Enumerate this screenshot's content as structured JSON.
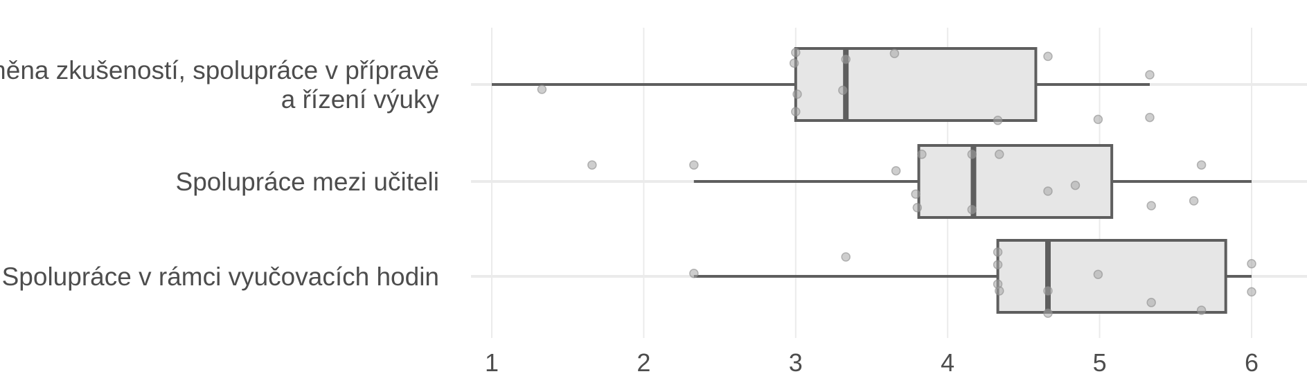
{
  "chart_data": {
    "type": "boxplot",
    "orientation": "horizontal",
    "title": "",
    "xlabel": "",
    "ylabel": "",
    "xlim": [
      0.8,
      6.25
    ],
    "x_ticks": [
      1,
      2,
      3,
      4,
      5,
      6
    ],
    "x_tick_labels": [
      "1",
      "2",
      "3",
      "4",
      "5",
      "6"
    ],
    "grid": true,
    "legend": "none",
    "colors": {
      "box_fill": "#e6e6e6",
      "box_stroke": "#5e5e5e",
      "point": "#a6a6a6",
      "grid": "#ebebeb",
      "text": "#4d4d4d"
    },
    "categories": [
      {
        "label_lines": [
          "Výměna zkušeností, spolupráce v přípravě",
          "a řízení výuky"
        ],
        "whisker_low": 1.0,
        "q1": 3.0,
        "median": 3.33,
        "q3": 4.58,
        "whisker_high": 5.33,
        "points": [
          [
            1.33,
            -0.05
          ],
          [
            3.0,
            0.33
          ],
          [
            2.99,
            0.22
          ],
          [
            3.01,
            -0.1
          ],
          [
            3.0,
            -0.28
          ],
          [
            3.33,
            0.26
          ],
          [
            3.31,
            -0.06
          ],
          [
            3.65,
            0.32
          ],
          [
            4.33,
            -0.37
          ],
          [
            4.66,
            0.29
          ],
          [
            4.99,
            -0.36
          ],
          [
            5.33,
            0.1
          ],
          [
            5.33,
            -0.34
          ]
        ]
      },
      {
        "label_lines": [
          "Spolupráce mezi učiteli"
        ],
        "whisker_low": 2.33,
        "q1": 3.81,
        "median": 4.17,
        "q3": 5.08,
        "whisker_high": 6.0,
        "points": [
          [
            1.66,
            0.17
          ],
          [
            2.33,
            0.17
          ],
          [
            3.66,
            0.11
          ],
          [
            3.79,
            -0.13
          ],
          [
            3.8,
            -0.27
          ],
          [
            3.83,
            0.28
          ],
          [
            4.16,
            0.28
          ],
          [
            4.16,
            -0.29
          ],
          [
            4.34,
            0.28
          ],
          [
            4.66,
            -0.1
          ],
          [
            4.84,
            -0.04
          ],
          [
            5.34,
            -0.25
          ],
          [
            5.62,
            -0.2
          ],
          [
            5.67,
            0.17
          ]
        ]
      },
      {
        "label_lines": [
          "Spolupráce v rámci vyučovacích hodin"
        ],
        "whisker_low": 2.33,
        "q1": 4.33,
        "median": 4.66,
        "q3": 5.83,
        "whisker_high": 6.0,
        "points": [
          [
            2.33,
            0.03
          ],
          [
            3.33,
            0.2
          ],
          [
            4.33,
            0.25
          ],
          [
            4.33,
            0.12
          ],
          [
            4.33,
            -0.08
          ],
          [
            4.34,
            -0.15
          ],
          [
            4.66,
            -0.15
          ],
          [
            4.66,
            -0.38
          ],
          [
            4.99,
            0.02
          ],
          [
            5.34,
            -0.27
          ],
          [
            5.67,
            -0.35
          ],
          [
            6.0,
            0.13
          ],
          [
            6.0,
            -0.16
          ]
        ]
      }
    ]
  }
}
